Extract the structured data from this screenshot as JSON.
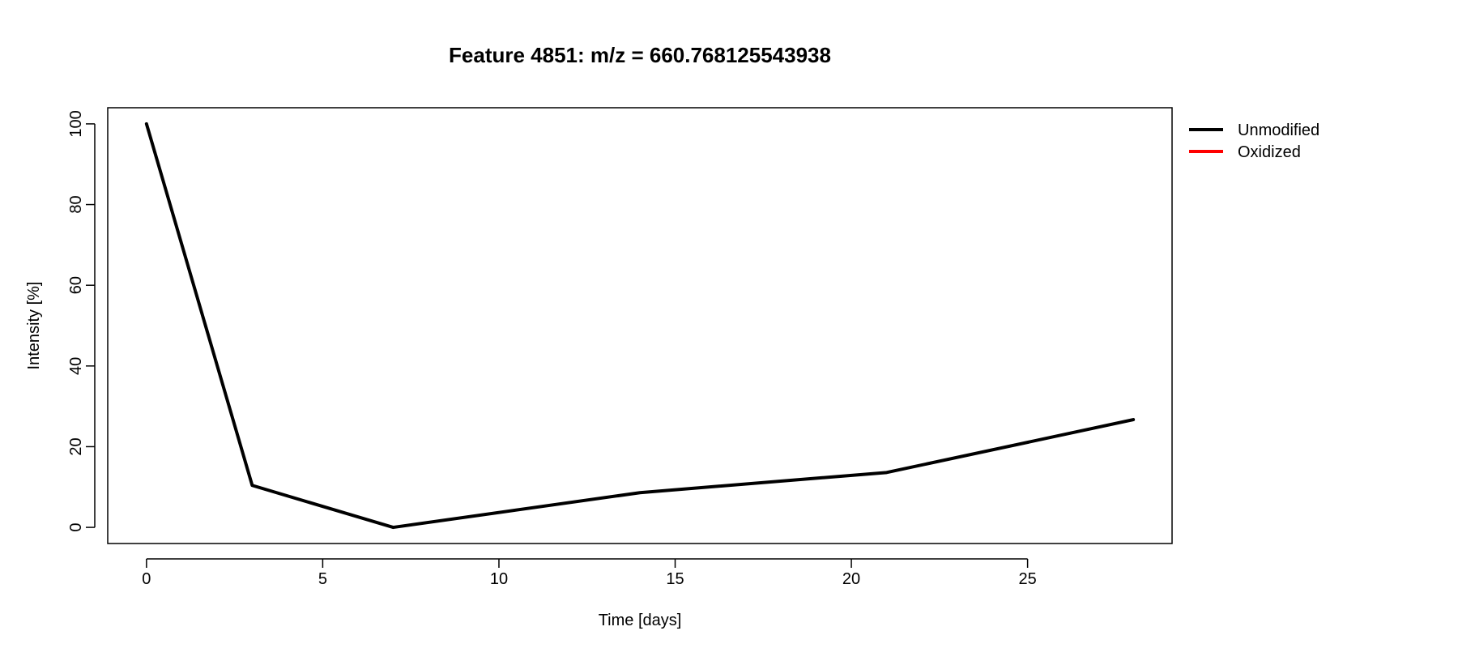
{
  "chart_data": {
    "type": "line",
    "title": "Feature 4851: m/z = 660.768125543938",
    "xlabel": "Time [days]",
    "ylabel": "Intensity [%]",
    "xlim": [
      -1.1,
      29.1
    ],
    "ylim": [
      -4,
      104
    ],
    "xticks": [
      0,
      5,
      10,
      15,
      20,
      25
    ],
    "yticks": [
      0,
      20,
      40,
      60,
      80,
      100
    ],
    "grid": false,
    "legend_position": "top-right outside plot",
    "series": [
      {
        "name": "Unmodified",
        "color": "#000000",
        "x": [
          0,
          3,
          7,
          14,
          21,
          28
        ],
        "y": [
          100,
          10.4,
          0,
          8.6,
          13.6,
          26.7
        ]
      },
      {
        "name": "Oxidized",
        "color": "#ff0000",
        "x": [],
        "y": []
      }
    ]
  }
}
